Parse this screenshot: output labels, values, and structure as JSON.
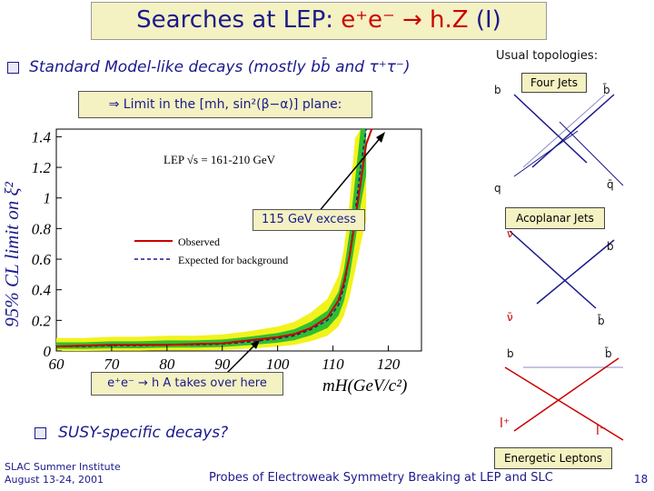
{
  "title": {
    "main": "Searches at LEP:",
    "reaction": "e⁺e⁻ → h.Z",
    "part": "(I)"
  },
  "bullet1": {
    "text": "Standard Model-like decays (mostly bb̄ and τ⁺τ⁻)"
  },
  "limit_box": {
    "text": "⇒ Limit in the [mh, sin²(β−α)] plane:"
  },
  "plot": {
    "y_axis_label": "95% CL limit on ξ²",
    "y_ticks": [
      "1.4",
      "1.2",
      "1",
      "0.8",
      "0.6",
      "0.4",
      "0.2",
      "0"
    ],
    "x_ticks": [
      "60",
      "70",
      "80",
      "90",
      "100",
      "110",
      "120"
    ],
    "x_axis_label": "mH(GeV/c²)",
    "inset_text": "LEP √s = 161-210 GeV",
    "legend_observed": "Observed",
    "legend_expected": "Expected for background",
    "annotation_excess": "115 GeV excess",
    "annotation_hA": "e⁺e⁻ → h A takes over here"
  },
  "chart_data": {
    "type": "line",
    "xlabel": "mH(GeV/c²)",
    "ylabel": "95% CL limit on ξ²",
    "xlim": [
      60,
      126
    ],
    "ylim": [
      0,
      1.45
    ],
    "grid": false,
    "series": [
      {
        "name": "Observed",
        "color": "#cc0000",
        "x": [
          60,
          65,
          70,
          75,
          80,
          85,
          90,
          95,
          100,
          103,
          106,
          109,
          111,
          112,
          113,
          114,
          115,
          116,
          117
        ],
        "y": [
          0.03,
          0.035,
          0.04,
          0.04,
          0.04,
          0.045,
          0.05,
          0.07,
          0.09,
          0.11,
          0.15,
          0.22,
          0.33,
          0.45,
          0.62,
          0.85,
          1.1,
          1.35,
          1.45
        ]
      },
      {
        "name": "Expected for background",
        "color": "#1a1a8c",
        "x": [
          60,
          65,
          70,
          75,
          80,
          85,
          90,
          95,
          100,
          103,
          106,
          109,
          111,
          112,
          113,
          114,
          115,
          116
        ],
        "y": [
          0.03,
          0.03,
          0.035,
          0.035,
          0.04,
          0.04,
          0.045,
          0.06,
          0.08,
          0.1,
          0.14,
          0.2,
          0.3,
          0.42,
          0.62,
          0.9,
          1.2,
          1.45
        ]
      }
    ]
  },
  "topologies": {
    "header": "Usual topologies:",
    "four_jets": {
      "label": "Four Jets",
      "b_left": "b",
      "b_right": "b̄",
      "q_left": "q",
      "q_right": "q̄"
    },
    "acoplanar": {
      "label": "Acoplanar Jets",
      "nu_top": "ν",
      "b_top": "b",
      "nu_bottom": "ν̄",
      "b_bottom": "b̄"
    },
    "leptons": {
      "label": "Energetic Leptons",
      "b_left": "b",
      "b_right": "b̄",
      "l_plus": "l⁺",
      "l_minus": "l⁻"
    }
  },
  "bullet2": {
    "text": "SUSY-specific decays?"
  },
  "footer": {
    "left_line1": "SLAC Summer Institute",
    "left_line2": "August 13-24, 2001",
    "center": "Probes of Electroweak Symmetry Breaking at LEP and SLC",
    "page": "18"
  },
  "colors": {
    "title_text": "#1a1a8c",
    "accent_red": "#cc0000",
    "box_bg": "#f4f1c2",
    "band_green": "#2fbf2f",
    "band_yellow": "#f2f21c"
  }
}
